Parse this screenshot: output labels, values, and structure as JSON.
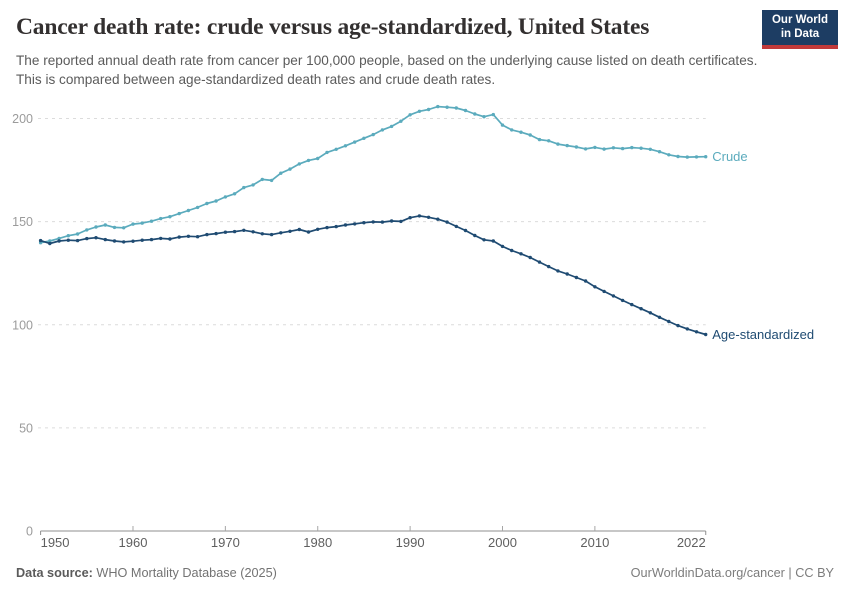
{
  "header": {
    "title": "Cancer death rate: crude versus age-standardized, United States",
    "subtitle": "The reported annual death rate from cancer per 100,000 people, based on the underlying cause listed on death certificates. This is compared between age-standardized death rates and crude death rates.",
    "logo": {
      "line1": "Our World",
      "line2": "in Data",
      "bg": "#1d3d63",
      "bar": "#c23a3a"
    }
  },
  "chart_data": {
    "type": "line",
    "title": "Cancer death rate: crude versus age-standardized, United States",
    "xlabel": "",
    "ylabel": "",
    "ylim": [
      0,
      210
    ],
    "yticks": [
      0,
      50,
      100,
      150,
      200
    ],
    "xticks": [
      1950,
      1960,
      1970,
      1980,
      1990,
      2000,
      2010,
      2022
    ],
    "grid": "horizontal-dashed",
    "legend_position": "end-of-line-labels",
    "x": [
      1950,
      1951,
      1952,
      1953,
      1954,
      1955,
      1956,
      1957,
      1958,
      1959,
      1960,
      1961,
      1962,
      1963,
      1964,
      1965,
      1966,
      1967,
      1968,
      1969,
      1970,
      1971,
      1972,
      1973,
      1974,
      1975,
      1976,
      1977,
      1978,
      1979,
      1980,
      1981,
      1982,
      1983,
      1984,
      1985,
      1986,
      1987,
      1988,
      1989,
      1990,
      1991,
      1992,
      1993,
      1994,
      1995,
      1996,
      1997,
      1998,
      1999,
      2000,
      2001,
      2002,
      2003,
      2004,
      2005,
      2006,
      2007,
      2008,
      2009,
      2010,
      2011,
      2012,
      2013,
      2014,
      2015,
      2016,
      2017,
      2018,
      2019,
      2020,
      2021,
      2022
    ],
    "series": [
      {
        "name": "Crude",
        "color": "#5babbd",
        "values": [
          139.8,
          140.6,
          141.9,
          143.2,
          144.0,
          146.0,
          147.4,
          148.4,
          147.2,
          147.0,
          148.8,
          149.3,
          150.2,
          151.5,
          152.4,
          153.9,
          155.4,
          156.9,
          158.8,
          160.0,
          162.0,
          163.5,
          166.5,
          167.8,
          170.5,
          170.0,
          173.5,
          175.5,
          178.0,
          179.7,
          180.6,
          183.6,
          185.1,
          186.8,
          188.6,
          190.4,
          192.2,
          194.5,
          196.2,
          198.7,
          201.8,
          203.5,
          204.4,
          205.8,
          205.5,
          205.1,
          203.9,
          202.2,
          200.9,
          201.9,
          196.8,
          194.5,
          193.4,
          192.0,
          189.8,
          189.2,
          187.6,
          186.9,
          186.2,
          185.3,
          186.0,
          185.2,
          185.8,
          185.4,
          185.9,
          185.6,
          185.1,
          183.9,
          182.4,
          181.6,
          181.3,
          181.4,
          181.5
        ]
      },
      {
        "name": "Age-standardized",
        "color": "#1f4b72",
        "values": [
          140.8,
          139.4,
          140.6,
          141.0,
          140.8,
          141.8,
          142.2,
          141.3,
          140.6,
          140.2,
          140.5,
          141.0,
          141.3,
          141.9,
          141.6,
          142.5,
          142.9,
          142.7,
          143.7,
          144.2,
          144.9,
          145.2,
          145.8,
          145.1,
          144.1,
          143.7,
          144.6,
          145.3,
          146.2,
          145.0,
          146.3,
          147.1,
          147.6,
          148.4,
          148.9,
          149.5,
          149.9,
          149.8,
          150.3,
          150.1,
          151.9,
          152.8,
          152.1,
          151.2,
          149.8,
          147.7,
          145.7,
          143.3,
          141.2,
          140.6,
          138.0,
          136.0,
          134.4,
          132.6,
          130.4,
          128.2,
          126.1,
          124.6,
          122.9,
          121.2,
          118.4,
          116.2,
          114.0,
          111.8,
          109.8,
          107.8,
          105.8,
          103.6,
          101.6,
          99.6,
          98.0,
          96.6,
          95.3
        ]
      }
    ],
    "style": {
      "grid_color": "#dcdcdc",
      "axis_color": "#8f8f8f",
      "ytick_label_color": "#9b9b9b",
      "xtick_label_color": "#5f5f5f"
    }
  },
  "footer": {
    "source_label": "Data source:",
    "source_value": " WHO Mortality Database (2025)",
    "credit": "OurWorldinData.org/cancer | CC BY"
  }
}
